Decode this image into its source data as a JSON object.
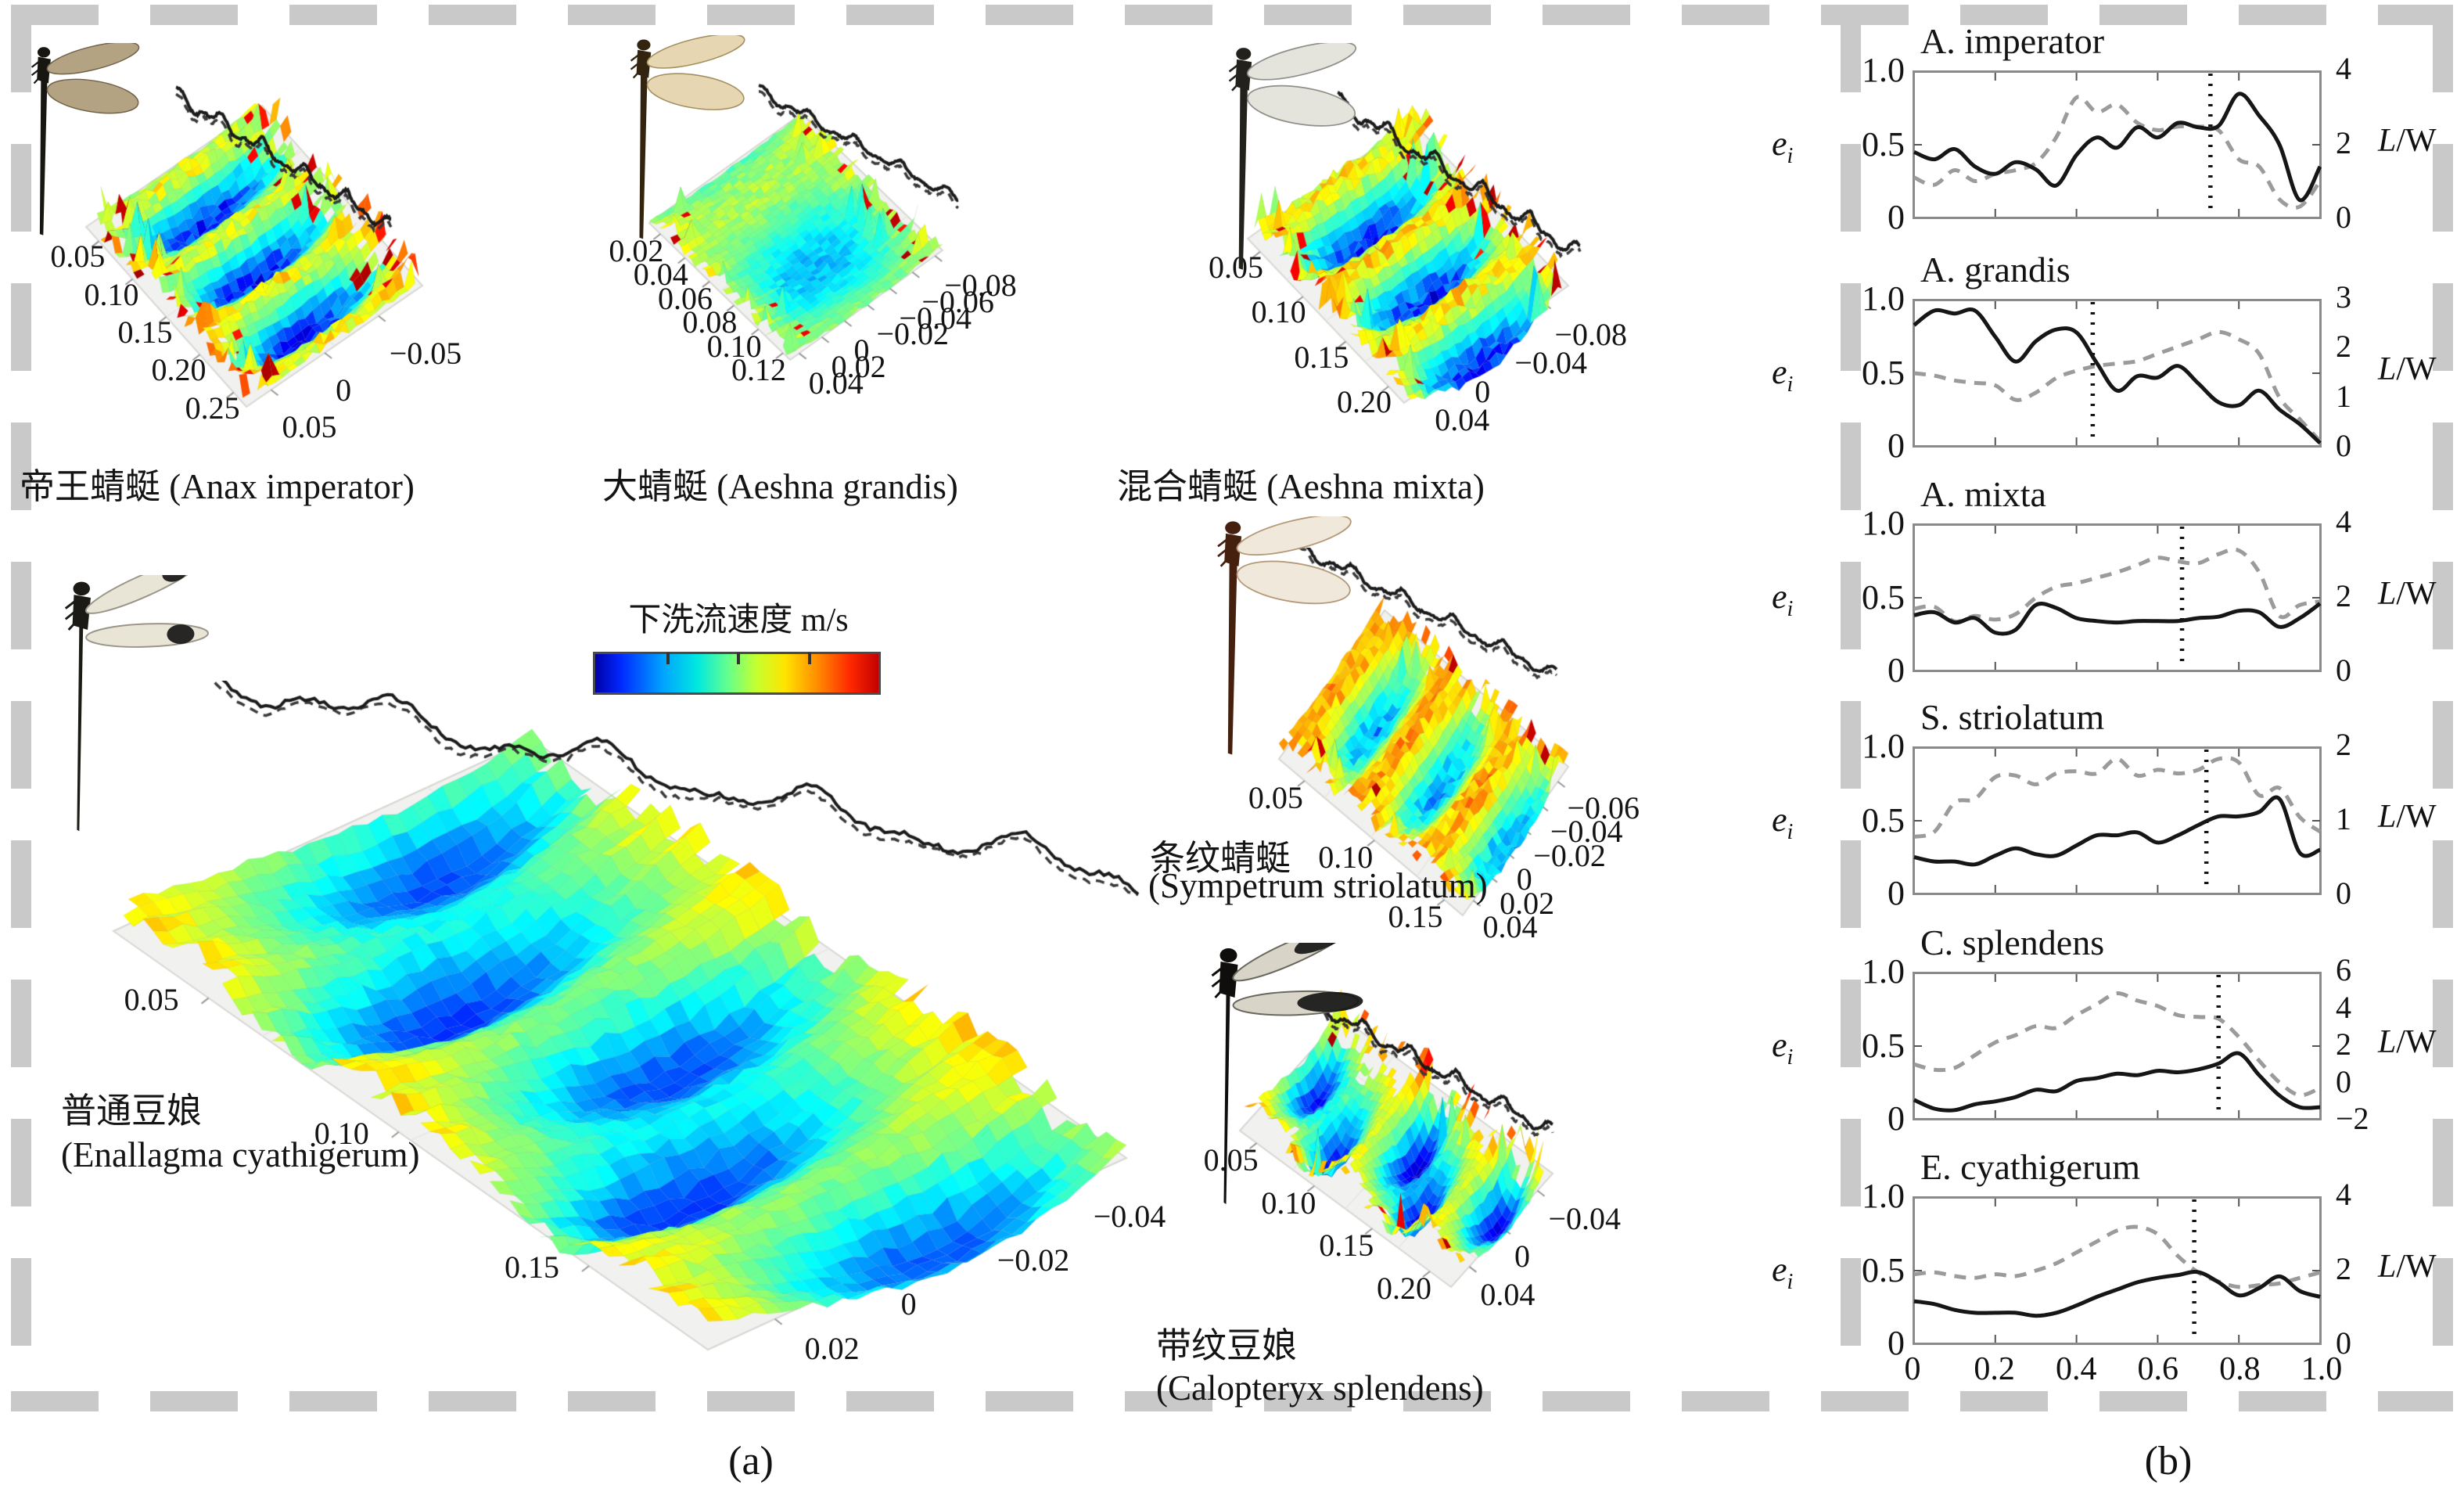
{
  "figure": {
    "panel_a_label": "(a)",
    "panel_b_label": "(b)",
    "colorbar_title": "下洗流速度 m/s"
  },
  "surfaces": [
    {
      "id": "anax-imperator",
      "caption_lines": [
        "帝王蜻蜓 (Anax imperator)"
      ],
      "x_ticks": [
        "0.05",
        "0.10",
        "0.15",
        "0.20",
        "0.25"
      ],
      "y_ticks": [
        "0.05",
        "0",
        "−0.05"
      ]
    },
    {
      "id": "aeshna-grandis",
      "caption_lines": [
        "大蜻蜓 (Aeshna grandis)"
      ],
      "x_ticks": [
        "0.02",
        "0.04",
        "0.06",
        "0.08",
        "0.10",
        "0.12"
      ],
      "y_ticks": [
        "0.04",
        "0.02",
        "0",
        "−0.02",
        "−0.04",
        "−0.06",
        "−0.08"
      ]
    },
    {
      "id": "aeshna-mixta",
      "caption_lines": [
        "混合蜻蜓 (Aeshna mixta)"
      ],
      "x_ticks": [
        "0.05",
        "0.10",
        "0.15",
        "0.20"
      ],
      "y_ticks": [
        "0.04",
        "0",
        "−0.04",
        "−0.08"
      ]
    },
    {
      "id": "enallagma-cyathigerum",
      "caption_lines": [
        "普通豆娘",
        "(Enallagma cyathigerum)"
      ],
      "x_ticks": [
        "0.05",
        "0.10",
        "0.15"
      ],
      "y_ticks": [
        "0.02",
        "0",
        "−0.02",
        "−0.04"
      ]
    },
    {
      "id": "sympetrum-striolatum",
      "caption_lines": [
        "条纹蜻蜓",
        "(Sympetrum striolatum)"
      ],
      "x_ticks": [
        "0.05",
        "0.10",
        "0.15"
      ],
      "y_ticks": [
        "0.04",
        "0.02",
        "0",
        "−0.02",
        "−0.04",
        "−0.06"
      ]
    },
    {
      "id": "calopteryx-splendens",
      "caption_lines": [
        "带纹豆娘",
        "(Calopteryx splendens)"
      ],
      "x_ticks": [
        "0.05",
        "0.10",
        "0.15",
        "0.20"
      ],
      "y_ticks": [
        "0.04",
        "0",
        "−0.04"
      ]
    }
  ],
  "panel_b": {
    "left_axis_ticks": [
      "1.0",
      "0.5",
      "0"
    ],
    "left_axis_label": "e",
    "left_axis_label_sub": "i",
    "right_axis_label_main": "L",
    "right_axis_label_rest": "/W",
    "x_axis_ticks": [
      "0",
      "0.2",
      "0.4",
      "0.6",
      "0.8",
      "1.0"
    ]
  },
  "chart_data": [
    {
      "type": "line",
      "title": "A. imperator",
      "x": [
        0,
        0.05,
        0.1,
        0.15,
        0.2,
        0.25,
        0.3,
        0.35,
        0.4,
        0.45,
        0.5,
        0.55,
        0.6,
        0.65,
        0.7,
        0.75,
        0.8,
        0.85,
        0.9,
        0.95,
        1.0
      ],
      "ylim_left": [
        0,
        1
      ],
      "ylim_right": [
        0,
        4
      ],
      "right_ticks": [
        "4",
        "2",
        "0"
      ],
      "marker_x": 0.73,
      "series": [
        {
          "name": "e_i",
          "axis": "left",
          "style": "solid",
          "values": [
            0.45,
            0.4,
            0.47,
            0.35,
            0.3,
            0.38,
            0.33,
            0.22,
            0.43,
            0.55,
            0.48,
            0.62,
            0.55,
            0.65,
            0.62,
            0.63,
            0.85,
            0.7,
            0.5,
            0.12,
            0.35
          ]
        },
        {
          "name": "L/W",
          "axis": "right",
          "style": "dashed",
          "values": [
            1.1,
            0.9,
            1.3,
            1.0,
            1.2,
            1.3,
            1.5,
            2.2,
            3.3,
            2.9,
            3.1,
            2.6,
            2.4,
            2.5,
            2.5,
            2.4,
            1.6,
            1.4,
            0.5,
            0.3,
            1.0
          ]
        }
      ]
    },
    {
      "type": "line",
      "title": "A. grandis",
      "x": [
        0,
        0.05,
        0.1,
        0.15,
        0.2,
        0.25,
        0.3,
        0.35,
        0.4,
        0.45,
        0.5,
        0.55,
        0.6,
        0.65,
        0.7,
        0.75,
        0.8,
        0.85,
        0.9,
        0.95,
        1.0
      ],
      "ylim_left": [
        0,
        1
      ],
      "ylim_right": [
        0,
        3
      ],
      "right_ticks": [
        "3",
        "2",
        "1",
        "0"
      ],
      "marker_x": 0.44,
      "series": [
        {
          "name": "e_i",
          "axis": "left",
          "style": "solid",
          "values": [
            0.83,
            0.93,
            0.91,
            0.93,
            0.75,
            0.58,
            0.72,
            0.8,
            0.78,
            0.57,
            0.38,
            0.48,
            0.47,
            0.55,
            0.43,
            0.3,
            0.28,
            0.38,
            0.25,
            0.15,
            0.02
          ]
        },
        {
          "name": "L/W",
          "axis": "right",
          "style": "dashed",
          "values": [
            1.5,
            1.45,
            1.35,
            1.3,
            1.25,
            0.95,
            1.1,
            1.4,
            1.55,
            1.65,
            1.7,
            1.75,
            1.9,
            2.05,
            2.2,
            2.35,
            2.2,
            1.9,
            1.0,
            0.55,
            0.1
          ]
        }
      ]
    },
    {
      "type": "line",
      "title": "A. mixta",
      "x": [
        0,
        0.05,
        0.1,
        0.15,
        0.2,
        0.25,
        0.3,
        0.35,
        0.4,
        0.45,
        0.5,
        0.55,
        0.6,
        0.65,
        0.7,
        0.75,
        0.8,
        0.85,
        0.9,
        0.95,
        1.0
      ],
      "ylim_left": [
        0,
        1
      ],
      "ylim_right": [
        0,
        4
      ],
      "right_ticks": [
        "4",
        "2",
        "0"
      ],
      "marker_x": 0.66,
      "series": [
        {
          "name": "e_i",
          "axis": "left",
          "style": "solid",
          "values": [
            0.38,
            0.4,
            0.33,
            0.36,
            0.26,
            0.28,
            0.45,
            0.43,
            0.36,
            0.34,
            0.33,
            0.34,
            0.34,
            0.34,
            0.36,
            0.37,
            0.41,
            0.4,
            0.3,
            0.36,
            0.46
          ]
        },
        {
          "name": "L/W",
          "axis": "right",
          "style": "dashed",
          "values": [
            1.7,
            1.75,
            1.35,
            1.5,
            1.4,
            1.55,
            2.0,
            2.3,
            2.4,
            2.55,
            2.7,
            2.9,
            3.1,
            3.0,
            2.95,
            3.2,
            3.3,
            2.7,
            1.5,
            1.8,
            1.9
          ]
        }
      ]
    },
    {
      "type": "line",
      "title": "S. striolatum",
      "x": [
        0,
        0.05,
        0.1,
        0.15,
        0.2,
        0.25,
        0.3,
        0.35,
        0.4,
        0.45,
        0.5,
        0.55,
        0.6,
        0.65,
        0.7,
        0.75,
        0.8,
        0.85,
        0.9,
        0.95,
        1.0
      ],
      "ylim_left": [
        0,
        1
      ],
      "ylim_right": [
        0,
        2
      ],
      "right_ticks": [
        "2",
        "1",
        "0"
      ],
      "marker_x": 0.72,
      "series": [
        {
          "name": "e_i",
          "axis": "left",
          "style": "solid",
          "values": [
            0.25,
            0.22,
            0.22,
            0.2,
            0.26,
            0.31,
            0.27,
            0.26,
            0.33,
            0.4,
            0.4,
            0.42,
            0.35,
            0.4,
            0.47,
            0.53,
            0.53,
            0.56,
            0.65,
            0.28,
            0.3
          ]
        },
        {
          "name": "L/W",
          "axis": "right",
          "style": "dashed",
          "values": [
            0.78,
            0.85,
            1.25,
            1.3,
            1.6,
            1.62,
            1.5,
            1.65,
            1.68,
            1.65,
            1.85,
            1.62,
            1.7,
            1.65,
            1.7,
            1.85,
            1.8,
            1.35,
            1.45,
            1.05,
            0.85
          ]
        }
      ]
    },
    {
      "type": "line",
      "title": "C. splendens",
      "x": [
        0,
        0.05,
        0.1,
        0.15,
        0.2,
        0.25,
        0.3,
        0.35,
        0.4,
        0.45,
        0.5,
        0.55,
        0.6,
        0.65,
        0.7,
        0.75,
        0.8,
        0.85,
        0.9,
        0.95,
        1.0
      ],
      "ylim_left": [
        0,
        1
      ],
      "ylim_right": [
        -2,
        6
      ],
      "right_ticks": [
        "6",
        "4",
        "2",
        "0",
        "−2"
      ],
      "marker_x": 0.75,
      "series": [
        {
          "name": "e_i",
          "axis": "left",
          "style": "solid",
          "values": [
            0.13,
            0.07,
            0.06,
            0.1,
            0.12,
            0.15,
            0.2,
            0.19,
            0.26,
            0.28,
            0.31,
            0.3,
            0.33,
            0.32,
            0.34,
            0.38,
            0.45,
            0.3,
            0.16,
            0.08,
            0.08
          ]
        },
        {
          "name": "L/W",
          "axis": "right",
          "style": "dashed",
          "values": [
            1.0,
            0.7,
            0.8,
            1.5,
            2.2,
            2.6,
            3.1,
            3.0,
            3.7,
            4.3,
            4.9,
            4.5,
            4.2,
            3.7,
            3.6,
            3.5,
            2.5,
            1.2,
            0.0,
            -0.7,
            -0.3
          ]
        }
      ]
    },
    {
      "type": "line",
      "title": "E. cyathigerum",
      "x": [
        0,
        0.05,
        0.1,
        0.15,
        0.2,
        0.25,
        0.3,
        0.35,
        0.4,
        0.45,
        0.5,
        0.55,
        0.6,
        0.65,
        0.7,
        0.75,
        0.8,
        0.85,
        0.9,
        0.95,
        1.0
      ],
      "ylim_left": [
        0,
        1
      ],
      "ylim_right": [
        0,
        4
      ],
      "right_ticks": [
        "4",
        "2",
        "0"
      ],
      "marker_x": 0.69,
      "series": [
        {
          "name": "e_i",
          "axis": "left",
          "style": "solid",
          "values": [
            0.29,
            0.27,
            0.23,
            0.21,
            0.21,
            0.21,
            0.19,
            0.21,
            0.26,
            0.32,
            0.37,
            0.42,
            0.45,
            0.47,
            0.49,
            0.42,
            0.33,
            0.38,
            0.46,
            0.36,
            0.32
          ]
        },
        {
          "name": "L/W",
          "axis": "right",
          "style": "dashed",
          "values": [
            1.9,
            1.95,
            1.85,
            1.8,
            1.9,
            1.85,
            2.0,
            2.2,
            2.5,
            2.8,
            3.1,
            3.2,
            3.0,
            2.4,
            1.95,
            1.7,
            1.55,
            1.6,
            1.65,
            1.8,
            1.95
          ]
        }
      ]
    }
  ]
}
